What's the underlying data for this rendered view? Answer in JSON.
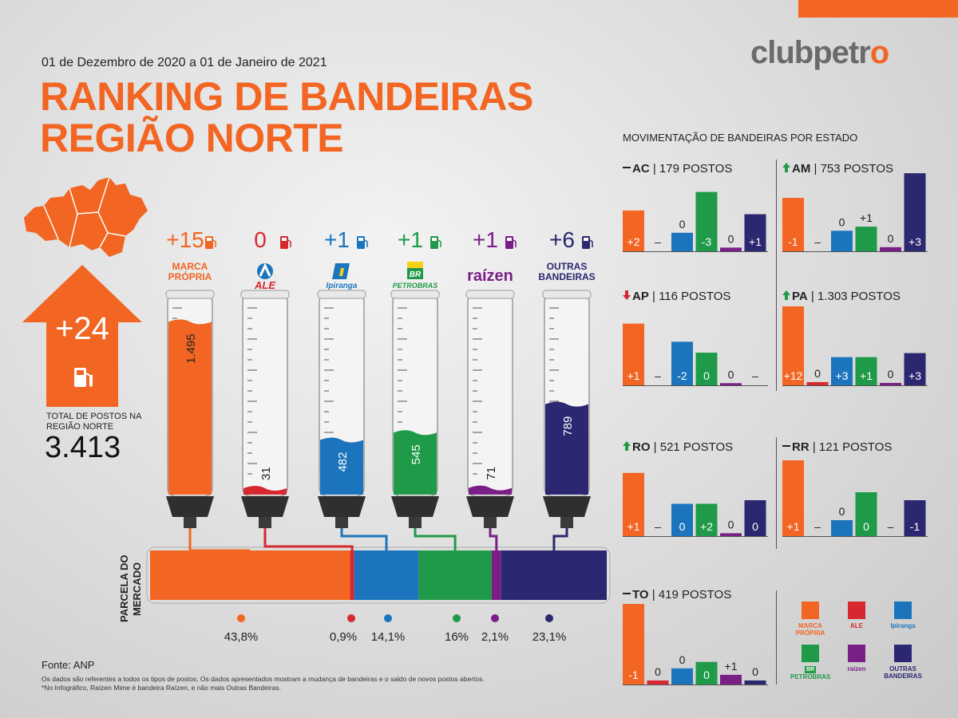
{
  "logo": {
    "text_a": "clubpetr",
    "text_b": "o"
  },
  "header": {
    "date_range": "01 de Dezembro de 2020 a 01 de Janeiro de 2021",
    "title_line1": "RANKING DE BANDEIRAS",
    "title_line2": "REGIÃO NORTE"
  },
  "totals": {
    "delta": "+24",
    "label_line1": "TOTAL DE POSTOS NA",
    "label_line2": "REGIÃO NORTE",
    "value": "3.413"
  },
  "colors": {
    "marca": "#f26522",
    "ale": "#d7282f",
    "ipiranga": "#1c75bc",
    "petrobras": "#1f9a48",
    "raizen": "#7a1f86",
    "outras": "#2b2770"
  },
  "chart_data": [
    {
      "type": "bar",
      "title": "",
      "categories": [
        "MARCA PRÓPRIA",
        "ALE",
        "Ipiranga",
        "PETROBRAS",
        "raízen",
        "OUTRAS BANDEIRAS"
      ],
      "values": [
        1495,
        31,
        482,
        545,
        71,
        789
      ],
      "value_labels": [
        "1.495",
        "31",
        "482",
        "545",
        "71",
        "789"
      ],
      "deltas": [
        "+15",
        "0",
        "+1",
        "+1",
        "+1",
        "+6"
      ],
      "ylim": [
        0,
        1600
      ]
    },
    {
      "type": "bar",
      "title": "PARCELA DO MERCADO",
      "categories": [
        "MARCA PRÓPRIA",
        "ALE",
        "Ipiranga",
        "PETROBRAS",
        "raízen",
        "OUTRAS BANDEIRAS"
      ],
      "values": [
        43.8,
        0.9,
        14.1,
        16,
        2.1,
        23.1
      ],
      "value_labels": [
        "43,8%",
        "0,9%",
        "14,1%",
        "16%",
        "2,1%",
        "23,1%"
      ]
    },
    {
      "type": "bar",
      "title": "MOVIMENTAÇÃO DE BANDEIRAS POR ESTADO",
      "series_order": [
        "MARCA PRÓPRIA",
        "ALE",
        "Ipiranga",
        "PETROBRAS",
        "raízen",
        "OUTRAS BANDEIRAS"
      ],
      "states": [
        {
          "code": "AC",
          "trend": "none",
          "postos": "179 POSTOS",
          "labels": [
            "+2",
            "–",
            "0",
            "-3",
            "0",
            "+1"
          ],
          "bars": [
            0.55,
            0,
            0.25,
            0.8,
            0.05,
            0.5
          ],
          "label_pos": [
            "in",
            "in",
            "above",
            "in",
            "above",
            "in"
          ]
        },
        {
          "code": "AM",
          "trend": "up",
          "postos": "753 POSTOS",
          "labels": [
            "-1",
            "–",
            "0",
            "+1",
            "0",
            "+3"
          ],
          "bars": [
            0.65,
            0,
            0.25,
            0.3,
            0.05,
            0.95
          ],
          "label_pos": [
            "in",
            "in",
            "above",
            "above",
            "above",
            "in"
          ]
        },
        {
          "code": "AP",
          "trend": "down",
          "postos": "116 POSTOS",
          "labels": [
            "+1",
            "–",
            "-2",
            "0",
            "0",
            "–"
          ],
          "bars": [
            0.85,
            0,
            0.6,
            0.45,
            0.03,
            0
          ],
          "label_pos": [
            "in",
            "in",
            "in",
            "in",
            "above",
            "in"
          ]
        },
        {
          "code": "PA",
          "trend": "up",
          "postos": "1.303 POSTOS",
          "labels": [
            "+12",
            "0",
            "+3",
            "+1",
            "0",
            "+3"
          ],
          "bars": [
            0.98,
            0.04,
            0.35,
            0.35,
            0.03,
            0.4
          ],
          "label_pos": [
            "in",
            "above",
            "in",
            "in",
            "above",
            "in"
          ]
        },
        {
          "code": "RO",
          "trend": "up",
          "postos": "521 POSTOS",
          "labels": [
            "+1",
            "–",
            "0",
            "+2",
            "0",
            "0"
          ],
          "bars": [
            0.88,
            0,
            0.45,
            0.45,
            0.04,
            0.5
          ],
          "label_pos": [
            "in",
            "in",
            "in",
            "in",
            "above",
            "in"
          ]
        },
        {
          "code": "RR",
          "trend": "none",
          "postos": "121 POSTOS",
          "labels": [
            "+1",
            "–",
            "0",
            "0",
            "–",
            "-1"
          ],
          "bars": [
            0.95,
            0,
            0.2,
            0.55,
            0,
            0.45
          ],
          "label_pos": [
            "in",
            "in",
            "above",
            "in",
            "in",
            "in"
          ]
        },
        {
          "code": "TO",
          "trend": "none",
          "postos": "419 POSTOS",
          "labels": [
            "-1",
            "0",
            "0",
            "0",
            "+1",
            "0"
          ],
          "bars": [
            1.0,
            0.05,
            0.2,
            0.28,
            0.12,
            0.05
          ],
          "label_pos": [
            "in",
            "above",
            "above",
            "in",
            "above",
            "above"
          ]
        }
      ]
    }
  ],
  "brands": [
    {
      "delta": "+15",
      "name_line1": "MARCA",
      "name_line2": "PRÓPRIA"
    },
    {
      "delta": "0",
      "logo": "ALE"
    },
    {
      "delta": "+1",
      "logo": "Ipiranga"
    },
    {
      "delta": "+1",
      "logo": "PETROBRAS",
      "badge": "BR"
    },
    {
      "delta": "+1",
      "logo": "raízen"
    },
    {
      "delta": "+6",
      "name_line1": "OUTRAS",
      "name_line2": "BANDEIRAS"
    }
  ],
  "share_title_line1": "PARCELA DO",
  "share_title_line2": "MERCADO",
  "legend": [
    {
      "label_line1": "MARCA",
      "label_line2": "PRÓPRIA"
    },
    {
      "label_line1": "ALE",
      "label_line2": ""
    },
    {
      "label_line1": "Ipiranga",
      "label_line2": ""
    },
    {
      "label_line1": "PETROBRAS",
      "label_line2": "",
      "badge": "BR"
    },
    {
      "label_line1": "raízen",
      "label_line2": ""
    },
    {
      "label_line1": "OUTRAS",
      "label_line2": "BANDEIRAS"
    }
  ],
  "footer": {
    "source": "Fonte: ANP",
    "note1": "Os dados são referentes a todos os tipos de postos. Os dados apresentados mostram a mudança de bandeiras e o saldo de novos postos abertos.",
    "note2": "*No Infográfico, Raízen Mime é bandeira Raízen, e não mais Outras Bandeiras."
  }
}
